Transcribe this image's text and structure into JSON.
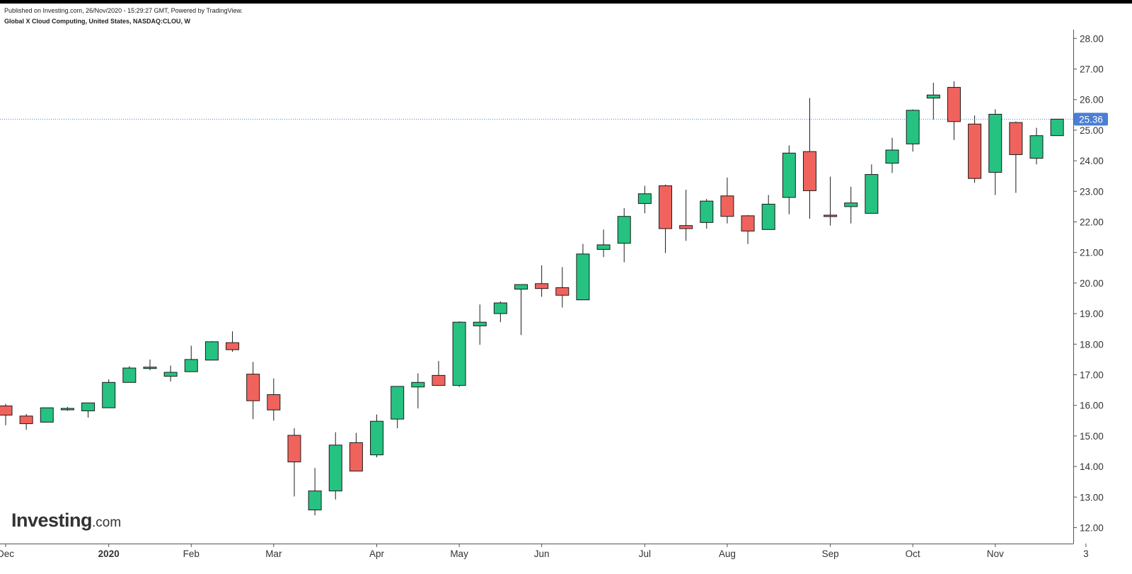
{
  "header": {
    "published": "Published on Investing.com, 26/Nov/2020 - 15:29:27 GMT, Powered by TradingView.",
    "symbol": "Global X Cloud Computing, United States, NASDAQ:CLOU, W"
  },
  "logo": {
    "brand": "Investing",
    "domain": ".com"
  },
  "chart_data": {
    "type": "candlestick",
    "title": "Global X Cloud Computing, United States, NASDAQ:CLOU, W",
    "interval": "weekly",
    "ylim": [
      11.6,
      28.3
    ],
    "y_ticks": [
      "12.00",
      "13.00",
      "14.00",
      "15.00",
      "16.00",
      "17.00",
      "18.00",
      "19.00",
      "20.00",
      "21.00",
      "22.00",
      "23.00",
      "24.00",
      "25.00",
      "26.00",
      "27.00",
      "28.00"
    ],
    "x_ticks": [
      {
        "label": "Dec",
        "week": 0,
        "bold": false
      },
      {
        "label": "2020",
        "week": 5,
        "bold": true
      },
      {
        "label": "Feb",
        "week": 9,
        "bold": false
      },
      {
        "label": "Mar",
        "week": 13,
        "bold": false
      },
      {
        "label": "Apr",
        "week": 18,
        "bold": false
      },
      {
        "label": "May",
        "week": 22,
        "bold": false
      },
      {
        "label": "Jun",
        "week": 26,
        "bold": false
      },
      {
        "label": "Jul",
        "week": 31,
        "bold": false
      },
      {
        "label": "Aug",
        "week": 35,
        "bold": false
      },
      {
        "label": "Sep",
        "week": 40,
        "bold": false
      },
      {
        "label": "Oct",
        "week": 44,
        "bold": false
      },
      {
        "label": "Nov",
        "week": 48,
        "bold": false
      },
      {
        "label": "3",
        "week": 52.4,
        "bold": false
      }
    ],
    "last_price": 25.36,
    "last_price_label": "25.36",
    "grid": false,
    "colors": {
      "up": "#26c281",
      "down": "#f0635c",
      "outline": "#1b1b1b",
      "price_line": "#4a7fd4",
      "axis": "#555555"
    },
    "candles": [
      {
        "o": 15.98,
        "h": 16.05,
        "l": 15.35,
        "c": 15.68
      },
      {
        "o": 15.65,
        "h": 15.72,
        "l": 15.2,
        "c": 15.4
      },
      {
        "o": 15.45,
        "h": 15.92,
        "l": 15.45,
        "c": 15.92
      },
      {
        "o": 15.88,
        "h": 15.95,
        "l": 15.82,
        "c": 15.9
      },
      {
        "o": 15.82,
        "h": 16.08,
        "l": 15.6,
        "c": 16.08
      },
      {
        "o": 15.92,
        "h": 16.85,
        "l": 15.92,
        "c": 16.75
      },
      {
        "o": 16.75,
        "h": 17.28,
        "l": 16.75,
        "c": 17.22
      },
      {
        "o": 17.22,
        "h": 17.5,
        "l": 17.15,
        "c": 17.25
      },
      {
        "o": 16.95,
        "h": 17.3,
        "l": 16.78,
        "c": 17.08
      },
      {
        "o": 17.1,
        "h": 17.95,
        "l": 17.1,
        "c": 17.5
      },
      {
        "o": 17.48,
        "h": 18.1,
        "l": 17.48,
        "c": 18.08
      },
      {
        "o": 18.05,
        "h": 18.42,
        "l": 17.75,
        "c": 17.82
      },
      {
        "o": 17.02,
        "h": 17.42,
        "l": 15.55,
        "c": 16.15
      },
      {
        "o": 16.35,
        "h": 16.88,
        "l": 15.5,
        "c": 15.85
      },
      {
        "o": 15.02,
        "h": 15.25,
        "l": 13.02,
        "c": 14.15
      },
      {
        "o": 12.58,
        "h": 13.95,
        "l": 12.4,
        "c": 13.2
      },
      {
        "o": 13.2,
        "h": 15.12,
        "l": 12.92,
        "c": 14.7
      },
      {
        "o": 14.78,
        "h": 15.1,
        "l": 13.85,
        "c": 13.85
      },
      {
        "o": 14.38,
        "h": 15.7,
        "l": 14.3,
        "c": 15.48
      },
      {
        "o": 15.55,
        "h": 16.62,
        "l": 15.25,
        "c": 16.62
      },
      {
        "o": 16.6,
        "h": 17.05,
        "l": 15.9,
        "c": 16.75
      },
      {
        "o": 16.98,
        "h": 17.45,
        "l": 16.65,
        "c": 16.65
      },
      {
        "o": 16.65,
        "h": 18.75,
        "l": 16.6,
        "c": 18.72
      },
      {
        "o": 18.6,
        "h": 19.3,
        "l": 17.98,
        "c": 18.72
      },
      {
        "o": 19.0,
        "h": 19.4,
        "l": 18.72,
        "c": 19.35
      },
      {
        "o": 19.8,
        "h": 19.95,
        "l": 18.3,
        "c": 19.95
      },
      {
        "o": 19.98,
        "h": 20.58,
        "l": 19.55,
        "c": 19.82
      },
      {
        "o": 19.85,
        "h": 20.52,
        "l": 19.2,
        "c": 19.6
      },
      {
        "o": 19.45,
        "h": 21.28,
        "l": 19.45,
        "c": 20.95
      },
      {
        "o": 21.1,
        "h": 21.75,
        "l": 20.85,
        "c": 21.25
      },
      {
        "o": 21.3,
        "h": 22.45,
        "l": 20.68,
        "c": 22.18
      },
      {
        "o": 22.6,
        "h": 23.18,
        "l": 22.28,
        "c": 22.92
      },
      {
        "o": 23.18,
        "h": 23.22,
        "l": 20.98,
        "c": 21.78
      },
      {
        "o": 21.88,
        "h": 23.05,
        "l": 21.38,
        "c": 21.78
      },
      {
        "o": 21.98,
        "h": 22.75,
        "l": 21.78,
        "c": 22.68
      },
      {
        "o": 22.85,
        "h": 23.45,
        "l": 21.95,
        "c": 22.18
      },
      {
        "o": 22.2,
        "h": 22.22,
        "l": 21.28,
        "c": 21.7
      },
      {
        "o": 21.75,
        "h": 22.88,
        "l": 21.75,
        "c": 22.58
      },
      {
        "o": 22.8,
        "h": 24.5,
        "l": 22.25,
        "c": 24.25
      },
      {
        "o": 24.3,
        "h": 26.05,
        "l": 22.1,
        "c": 23.02
      },
      {
        "o": 22.22,
        "h": 23.48,
        "l": 21.88,
        "c": 22.18
      },
      {
        "o": 22.5,
        "h": 23.15,
        "l": 21.95,
        "c": 22.62
      },
      {
        "o": 22.28,
        "h": 23.88,
        "l": 22.28,
        "c": 23.55
      },
      {
        "o": 23.92,
        "h": 24.75,
        "l": 23.6,
        "c": 24.35
      },
      {
        "o": 24.55,
        "h": 25.68,
        "l": 24.3,
        "c": 25.65
      },
      {
        "o": 26.05,
        "h": 26.55,
        "l": 25.35,
        "c": 26.15
      },
      {
        "o": 26.4,
        "h": 26.6,
        "l": 24.68,
        "c": 25.28
      },
      {
        "o": 25.2,
        "h": 25.48,
        "l": 23.28,
        "c": 23.42
      },
      {
        "o": 23.62,
        "h": 25.68,
        "l": 22.88,
        "c": 25.52
      },
      {
        "o": 25.25,
        "h": 25.28,
        "l": 22.95,
        "c": 24.2
      },
      {
        "o": 24.08,
        "h": 25.08,
        "l": 23.88,
        "c": 24.82
      },
      {
        "o": 24.82,
        "h": 25.36,
        "l": 24.82,
        "c": 25.36
      }
    ]
  }
}
